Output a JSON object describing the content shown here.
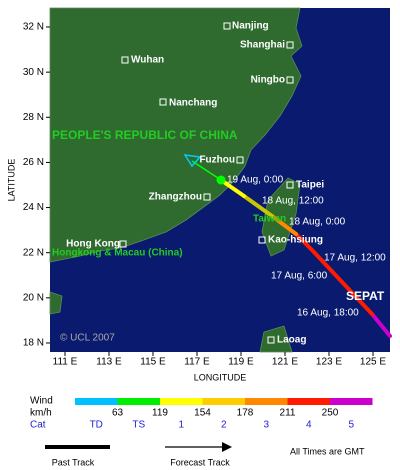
{
  "map": {
    "lat_axis": {
      "title": "LATITUDE",
      "ticks": [
        {
          "value": 18,
          "label": "18 N"
        },
        {
          "value": 20,
          "label": "20 N"
        },
        {
          "value": 22,
          "label": "22 N"
        },
        {
          "value": 24,
          "label": "24 N"
        },
        {
          "value": 26,
          "label": "26 N"
        },
        {
          "value": 28,
          "label": "28 N"
        },
        {
          "value": 30,
          "label": "30 N"
        },
        {
          "value": 32,
          "label": "32 N"
        }
      ]
    },
    "lon_axis": {
      "title": "LONGITUDE",
      "ticks": [
        {
          "value": 111,
          "label": "111 E"
        },
        {
          "value": 113,
          "label": "113 E"
        },
        {
          "value": 115,
          "label": "115 E"
        },
        {
          "value": 117,
          "label": "117 E"
        },
        {
          "value": 119,
          "label": "119 E"
        },
        {
          "value": 121,
          "label": "121 E"
        },
        {
          "value": 123,
          "label": "123 E"
        },
        {
          "value": 125,
          "label": "125 E"
        }
      ]
    },
    "country_labels": [
      "PEOPLE'S REPUBLIC OF CHINA",
      "Hongkong & Macau (China)",
      "Taiwan"
    ],
    "cities": [
      "Nanjing",
      "Shanghai",
      "Wuhan",
      "Ningbo",
      "Nanchang",
      "Fuzhou",
      "Taipei",
      "Zhangzhou",
      "Hong Kong",
      "Kao-hsiung",
      "Laoag"
    ],
    "track_labels": [
      "19 Aug, 0:00",
      "18 Aug, 12:00",
      "18 Aug, 0:00",
      "17 Aug, 12:00",
      "17 Aug, 6:00",
      "16 Aug, 18:00"
    ],
    "storm_name": "SEPAT",
    "copyright": "© UCL 2007"
  },
  "legend": {
    "wind_label": "Wind",
    "unit_label": "km/h",
    "cat_label": "Cat",
    "thresholds": [
      63,
      119,
      154,
      178,
      211,
      250
    ],
    "categories": [
      "TD",
      "TS",
      "1",
      "2",
      "3",
      "4",
      "5"
    ],
    "past_track": "Past Track",
    "forecast_track": "Forecast Track",
    "note": "All Times are GMT"
  }
}
